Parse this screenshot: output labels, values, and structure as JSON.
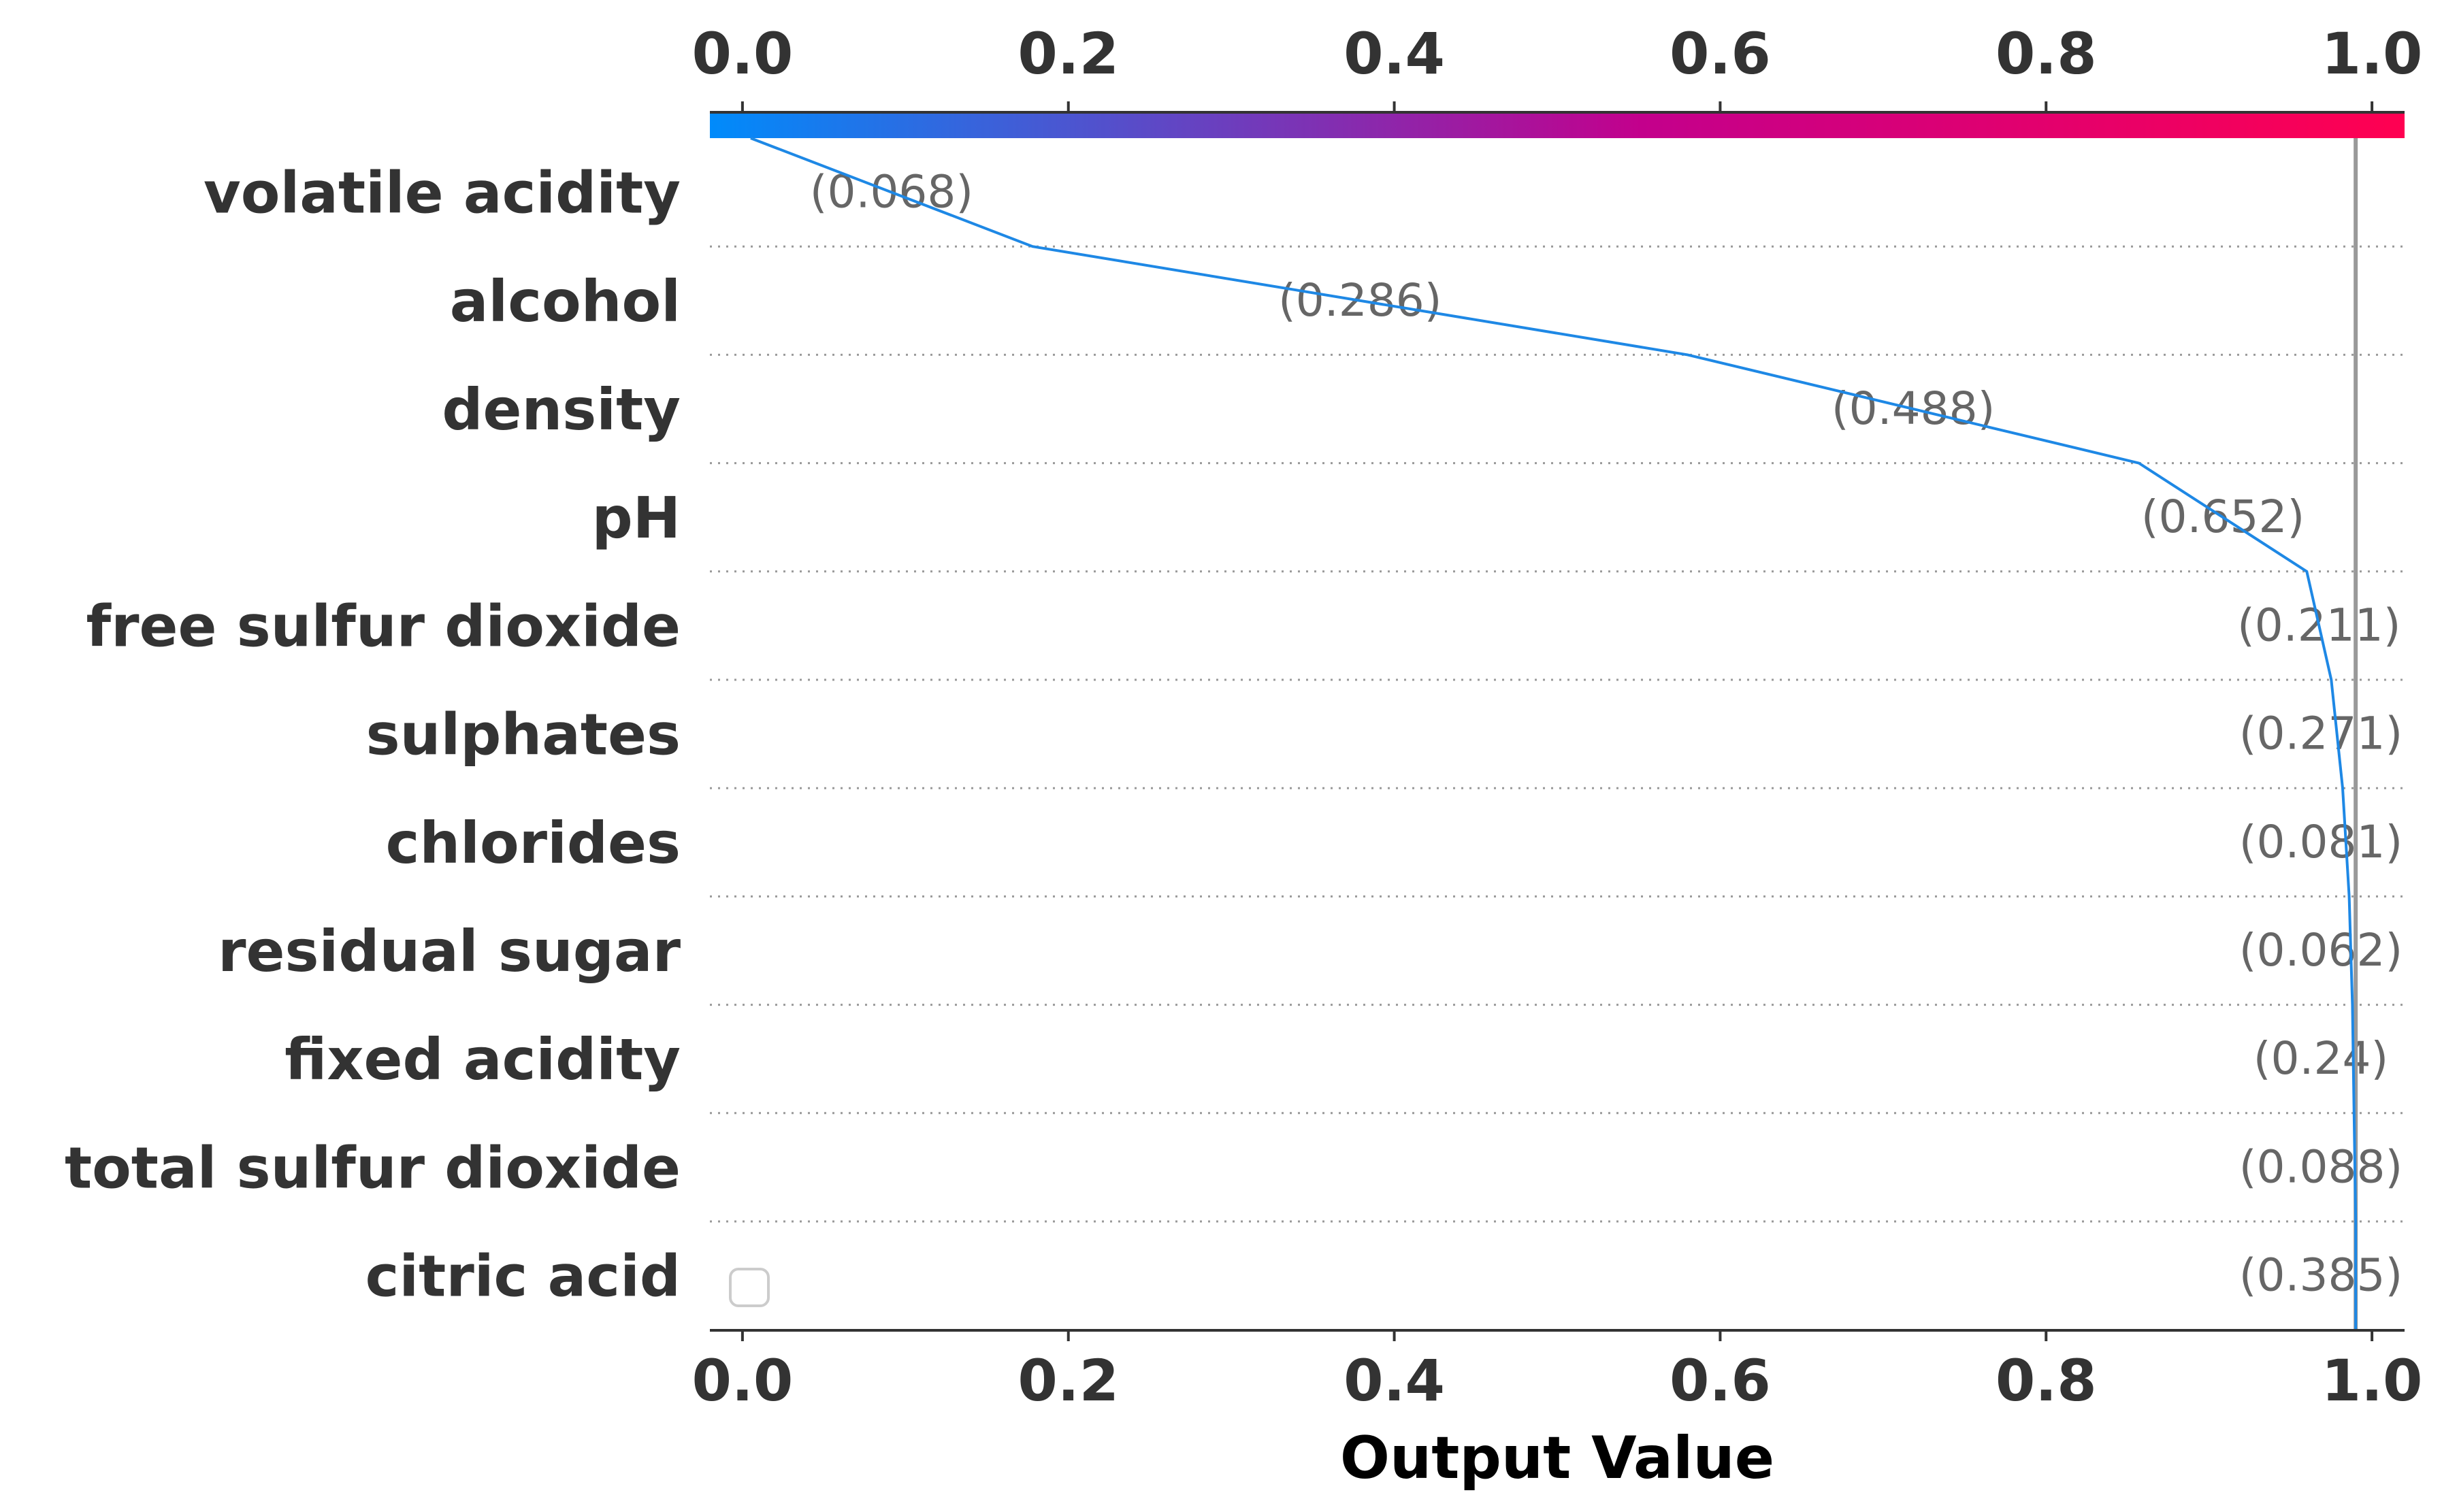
{
  "chart_data": {
    "type": "line",
    "title": "",
    "xlabel": "Output Value",
    "ylabel": "",
    "xlim": [
      -0.02,
      1.02
    ],
    "x_ticks": [
      "0.0",
      "0.2",
      "0.4",
      "0.6",
      "0.8",
      "1.0"
    ],
    "x_tick_values": [
      0.0,
      0.2,
      0.4,
      0.6,
      0.8,
      1.0
    ],
    "base_value": 0.005,
    "model_output": 0.99,
    "features": [
      "volatile acidity",
      "alcohol",
      "density",
      "pH",
      "free sulfur dioxide",
      "sulphates",
      "chlorides",
      "residual sugar",
      "fixed acidity",
      "total sulfur dioxide",
      "citric acid"
    ],
    "feature_values": [
      "(0.068)",
      "(0.286)",
      "(0.488)",
      "(0.652)",
      "(0.211)",
      "(0.271)",
      "(0.081)",
      "(0.062)",
      "(0.24)",
      "(0.088)",
      "(0.385)"
    ],
    "path_values": [
      0.005,
      0.178,
      0.58,
      0.857,
      0.96,
      0.975,
      0.982,
      0.986,
      0.988,
      0.989,
      0.99,
      0.99
    ],
    "colors": {
      "line": "#1e88e5",
      "model_output_line": "#999999",
      "axis": "#333333",
      "grid": "#999999",
      "cmap_start": "#008bfb",
      "cmap_mid": "#c3008c",
      "cmap_end": "#ff0051"
    }
  }
}
